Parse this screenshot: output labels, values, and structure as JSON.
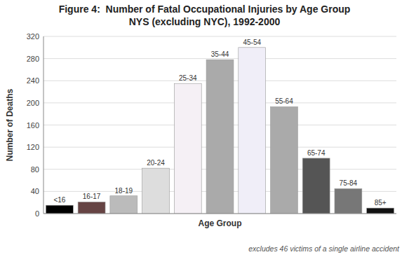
{
  "chart_data": {
    "type": "bar",
    "title": "Figure 4:  Number of Fatal Occupational Injuries by Age Group",
    "subtitle": "NYS (excluding NYC), 1992-2000",
    "x_label": "Age Group",
    "y_label": "Number of Deaths",
    "annotations": [
      "excludes 46 victims of a single airline accident"
    ],
    "categories": [
      "<16",
      "16-17",
      "18-19",
      "20-24",
      "25-34",
      "35-44",
      "45-54",
      "55-64",
      "65-74",
      "75-84",
      "85+"
    ],
    "values": [
      15,
      21,
      32,
      82,
      235,
      278,
      300,
      193,
      100,
      45,
      10
    ],
    "colors": [
      "#000000",
      "#664444",
      "#bbbbbb",
      "#dddddd",
      "#f5f0f5",
      "#aaaaaa",
      "#f0eef8",
      "#aaaaaa",
      "#555555",
      "#777777",
      "#111111"
    ],
    "ylim": [
      0,
      320
    ],
    "yticks": [
      0,
      40,
      80,
      120,
      160,
      200,
      240,
      280,
      320
    ],
    "grid": true,
    "tick_labels": "y"
  }
}
